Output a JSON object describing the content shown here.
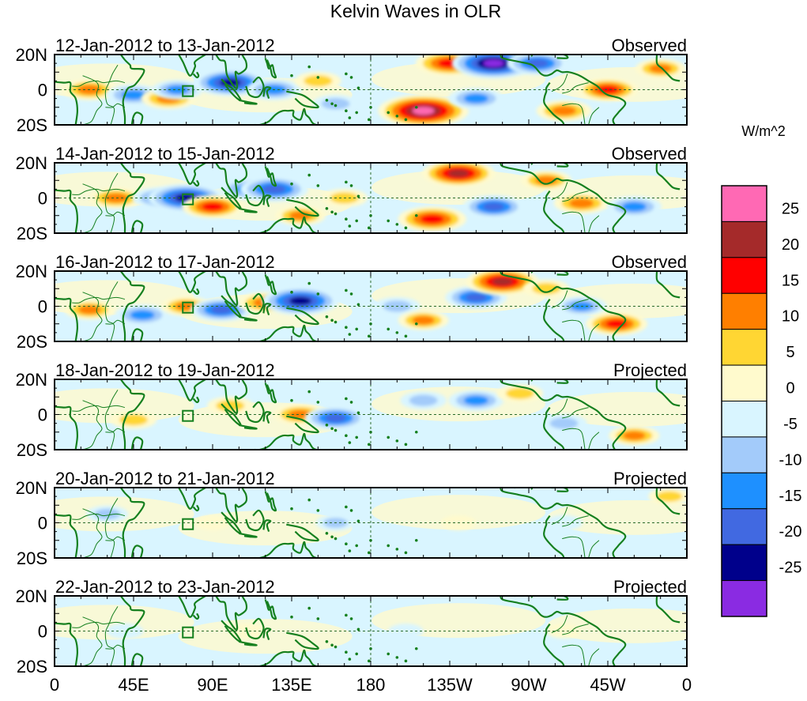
{
  "chart_data": {
    "type": "heatmap",
    "title": "Kelvin Waves in OLR",
    "units": "W/m^2",
    "variable": "OLR anomaly",
    "x_tick_labels": [
      "0",
      "45E",
      "90E",
      "135E",
      "180",
      "135W",
      "90W",
      "45W",
      "0"
    ],
    "y_tick_labels": [
      "20N",
      "0",
      "20S"
    ],
    "lon_range_deg_east": [
      0,
      360
    ],
    "lat_range_deg": [
      -20,
      20
    ],
    "colorbar": {
      "labels": [
        "25",
        "20",
        "15",
        "10",
        "5",
        "0",
        "-5",
        "-10",
        "-15",
        "-20",
        "-25"
      ],
      "levels": [
        -25,
        -20,
        -15,
        -10,
        -5,
        0,
        5,
        10,
        15,
        20,
        25
      ],
      "colors_low_to_high": [
        "#8a2be2",
        "#00008b",
        "#4169e1",
        "#1e90ff",
        "#a3cbfa",
        "#d9f5ff",
        "#fffacd",
        "#ffd633",
        "#ff7f00",
        "#ff0000",
        "#a52a2a",
        "#ff69b4"
      ]
    },
    "panels": [
      {
        "date_label": "12-Jan-2012 to 13-Jan-2012",
        "status": "Observed",
        "anomalies": [
          {
            "lon": 20,
            "lat": 0,
            "value": 12
          },
          {
            "lon": 45,
            "lat": -3,
            "value": -12
          },
          {
            "lon": 65,
            "lat": -5,
            "value": 12
          },
          {
            "lon": 70,
            "lat": 0,
            "value": -10
          },
          {
            "lon": 100,
            "lat": 4,
            "value": -20
          },
          {
            "lon": 125,
            "lat": 0,
            "value": -12
          },
          {
            "lon": 150,
            "lat": 5,
            "value": 8
          },
          {
            "lon": 160,
            "lat": -8,
            "value": -8
          },
          {
            "lon": 210,
            "lat": -12,
            "value": 28
          },
          {
            "lon": 225,
            "lat": 15,
            "value": 18
          },
          {
            "lon": 250,
            "lat": 15,
            "value": -25
          },
          {
            "lon": 240,
            "lat": -5,
            "value": -12
          },
          {
            "lon": 275,
            "lat": 15,
            "value": -15
          },
          {
            "lon": 290,
            "lat": -12,
            "value": 12
          },
          {
            "lon": 315,
            "lat": 0,
            "value": 15
          },
          {
            "lon": 345,
            "lat": 12,
            "value": 10
          }
        ]
      },
      {
        "date_label": "14-Jan-2012 to 15-Jan-2012",
        "status": "Observed",
        "anomalies": [
          {
            "lon": 35,
            "lat": 0,
            "value": 12
          },
          {
            "lon": 60,
            "lat": 0,
            "value": -12
          },
          {
            "lon": 75,
            "lat": 0,
            "value": -22
          },
          {
            "lon": 90,
            "lat": -5,
            "value": 15
          },
          {
            "lon": 110,
            "lat": 5,
            "value": -12
          },
          {
            "lon": 125,
            "lat": 5,
            "value": -18
          },
          {
            "lon": 140,
            "lat": -10,
            "value": 10
          },
          {
            "lon": 165,
            "lat": 0,
            "value": 8
          },
          {
            "lon": 230,
            "lat": 14,
            "value": 20
          },
          {
            "lon": 215,
            "lat": -12,
            "value": 18
          },
          {
            "lon": 250,
            "lat": -5,
            "value": -15
          },
          {
            "lon": 280,
            "lat": 10,
            "value": 10
          },
          {
            "lon": 300,
            "lat": -3,
            "value": 12
          },
          {
            "lon": 330,
            "lat": -5,
            "value": -12
          }
        ]
      },
      {
        "date_label": "16-Jan-2012 to 17-Jan-2012",
        "status": "Observed",
        "anomalies": [
          {
            "lon": 20,
            "lat": -2,
            "value": 10
          },
          {
            "lon": 50,
            "lat": -5,
            "value": -12
          },
          {
            "lon": 75,
            "lat": 0,
            "value": 10
          },
          {
            "lon": 95,
            "lat": -2,
            "value": -15
          },
          {
            "lon": 120,
            "lat": 2,
            "value": 12
          },
          {
            "lon": 140,
            "lat": 3,
            "value": -22
          },
          {
            "lon": 195,
            "lat": 0,
            "value": -8
          },
          {
            "lon": 210,
            "lat": -8,
            "value": 10
          },
          {
            "lon": 240,
            "lat": 5,
            "value": -15
          },
          {
            "lon": 255,
            "lat": 14,
            "value": 20
          },
          {
            "lon": 280,
            "lat": 10,
            "value": 8
          },
          {
            "lon": 300,
            "lat": 0,
            "value": -10
          },
          {
            "lon": 320,
            "lat": -10,
            "value": 15
          }
        ]
      },
      {
        "date_label": "18-Jan-2012 to 19-Jan-2012",
        "status": "Projected",
        "anomalies": [
          {
            "lon": 45,
            "lat": -3,
            "value": 8
          },
          {
            "lon": 100,
            "lat": 5,
            "value": 8
          },
          {
            "lon": 140,
            "lat": 0,
            "value": 12
          },
          {
            "lon": 160,
            "lat": -2,
            "value": -15
          },
          {
            "lon": 210,
            "lat": 8,
            "value": -8
          },
          {
            "lon": 240,
            "lat": 8,
            "value": -12
          },
          {
            "lon": 265,
            "lat": 12,
            "value": 8
          },
          {
            "lon": 290,
            "lat": -5,
            "value": -8
          },
          {
            "lon": 330,
            "lat": -12,
            "value": 10
          }
        ]
      },
      {
        "date_label": "20-Jan-2012 to 21-Jan-2012",
        "status": "Projected",
        "anomalies": [
          {
            "lon": 30,
            "lat": 5,
            "value": -6
          },
          {
            "lon": 90,
            "lat": 0,
            "value": 3
          },
          {
            "lon": 160,
            "lat": 0,
            "value": -5
          },
          {
            "lon": 230,
            "lat": 0,
            "value": 3
          },
          {
            "lon": 290,
            "lat": 0,
            "value": -4
          },
          {
            "lon": 350,
            "lat": 15,
            "value": 6
          }
        ]
      },
      {
        "date_label": "22-Jan-2012 to 23-Jan-2012",
        "status": "Projected",
        "anomalies": [
          {
            "lon": 40,
            "lat": 0,
            "value": -4
          },
          {
            "lon": 110,
            "lat": 0,
            "value": 4
          },
          {
            "lon": 200,
            "lat": 0,
            "value": -3
          },
          {
            "lon": 290,
            "lat": 0,
            "value": 3
          }
        ]
      }
    ]
  }
}
